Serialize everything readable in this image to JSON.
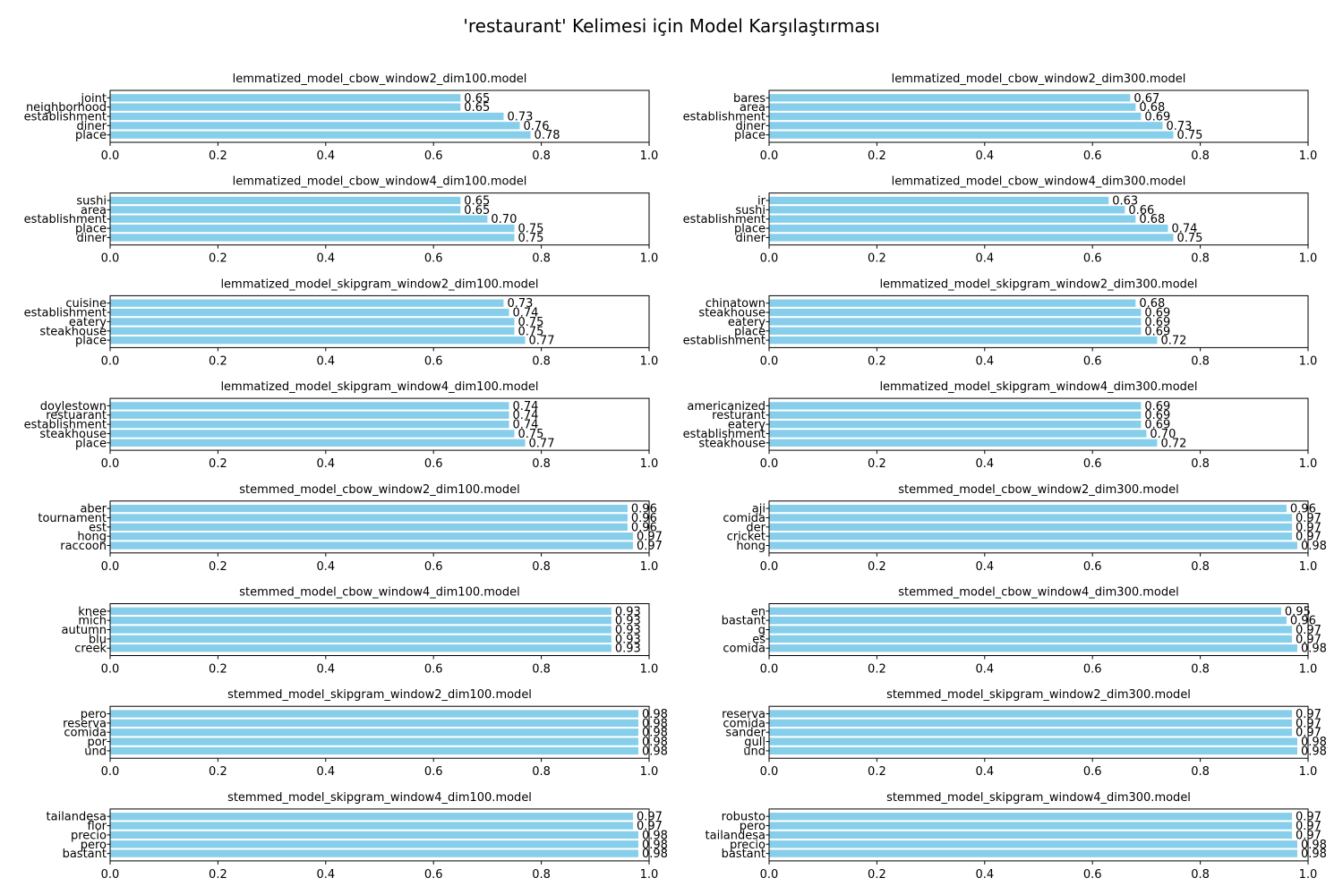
{
  "title": "'restaurant' Kelimesi için Model Karşılaştırması",
  "colors": {
    "bar": "#87ceeb",
    "axis": "#000000",
    "background": "#ffffff"
  },
  "chart_data": [
    {
      "type": "bar",
      "orientation": "horizontal",
      "title": "lemmatized_model_cbow_window2_dim100.model",
      "xlim": [
        0,
        1
      ],
      "xticks": [
        "0.0",
        "0.2",
        "0.4",
        "0.6",
        "0.8",
        "1.0"
      ],
      "grid": false,
      "categories": [
        "place",
        "diner",
        "establishment",
        "neighborhood",
        "joint"
      ],
      "values": [
        0.78,
        0.76,
        0.73,
        0.65,
        0.65
      ],
      "labels": [
        "0.78",
        "0.76",
        "0.73",
        "0.65",
        "0.65"
      ]
    },
    {
      "type": "bar",
      "orientation": "horizontal",
      "title": "lemmatized_model_cbow_window2_dim300.model",
      "xlim": [
        0,
        1
      ],
      "xticks": [
        "0.0",
        "0.2",
        "0.4",
        "0.6",
        "0.8",
        "1.0"
      ],
      "grid": false,
      "categories": [
        "place",
        "diner",
        "establishment",
        "area",
        "bares"
      ],
      "values": [
        0.75,
        0.73,
        0.69,
        0.68,
        0.67
      ],
      "labels": [
        "0.75",
        "0.73",
        "0.69",
        "0.68",
        "0.67"
      ]
    },
    {
      "type": "bar",
      "orientation": "horizontal",
      "title": "lemmatized_model_cbow_window4_dim100.model",
      "xlim": [
        0,
        1
      ],
      "xticks": [
        "0.0",
        "0.2",
        "0.4",
        "0.6",
        "0.8",
        "1.0"
      ],
      "grid": false,
      "categories": [
        "diner",
        "place",
        "establishment",
        "area",
        "sushi"
      ],
      "values": [
        0.75,
        0.75,
        0.7,
        0.65,
        0.65
      ],
      "labels": [
        "0.75",
        "0.75",
        "0.70",
        "0.65",
        "0.65"
      ]
    },
    {
      "type": "bar",
      "orientation": "horizontal",
      "title": "lemmatized_model_cbow_window4_dim300.model",
      "xlim": [
        0,
        1
      ],
      "xticks": [
        "0.0",
        "0.2",
        "0.4",
        "0.6",
        "0.8",
        "1.0"
      ],
      "grid": false,
      "categories": [
        "diner",
        "place",
        "establishment",
        "sushi",
        "ir"
      ],
      "values": [
        0.75,
        0.74,
        0.68,
        0.66,
        0.63
      ],
      "labels": [
        "0.75",
        "0.74",
        "0.68",
        "0.66",
        "0.63"
      ]
    },
    {
      "type": "bar",
      "orientation": "horizontal",
      "title": "lemmatized_model_skipgram_window2_dim100.model",
      "xlim": [
        0,
        1
      ],
      "xticks": [
        "0.0",
        "0.2",
        "0.4",
        "0.6",
        "0.8",
        "1.0"
      ],
      "grid": false,
      "categories": [
        "place",
        "steakhouse",
        "eatery",
        "establishment",
        "cuisine"
      ],
      "values": [
        0.77,
        0.75,
        0.75,
        0.74,
        0.73
      ],
      "labels": [
        "0.77",
        "0.75",
        "0.75",
        "0.74",
        "0.73"
      ]
    },
    {
      "type": "bar",
      "orientation": "horizontal",
      "title": "lemmatized_model_skipgram_window2_dim300.model",
      "xlim": [
        0,
        1
      ],
      "xticks": [
        "0.0",
        "0.2",
        "0.4",
        "0.6",
        "0.8",
        "1.0"
      ],
      "grid": false,
      "categories": [
        "establishment",
        "place",
        "eatery",
        "steakhouse",
        "chinatown"
      ],
      "values": [
        0.72,
        0.69,
        0.69,
        0.69,
        0.68
      ],
      "labels": [
        "0.72",
        "0.69",
        "0.69",
        "0.69",
        "0.68"
      ]
    },
    {
      "type": "bar",
      "orientation": "horizontal",
      "title": "lemmatized_model_skipgram_window4_dim100.model",
      "xlim": [
        0,
        1
      ],
      "xticks": [
        "0.0",
        "0.2",
        "0.4",
        "0.6",
        "0.8",
        "1.0"
      ],
      "grid": false,
      "categories": [
        "place",
        "steakhouse",
        "establishment",
        "restuarant",
        "doylestown"
      ],
      "values": [
        0.77,
        0.75,
        0.74,
        0.74,
        0.74
      ],
      "labels": [
        "0.77",
        "0.75",
        "0.74",
        "0.74",
        "0.74"
      ]
    },
    {
      "type": "bar",
      "orientation": "horizontal",
      "title": "lemmatized_model_skipgram_window4_dim300.model",
      "xlim": [
        0,
        1
      ],
      "xticks": [
        "0.0",
        "0.2",
        "0.4",
        "0.6",
        "0.8",
        "1.0"
      ],
      "grid": false,
      "categories": [
        "steakhouse",
        "establishment",
        "eatery",
        "resturant",
        "americanized"
      ],
      "values": [
        0.72,
        0.7,
        0.69,
        0.69,
        0.69
      ],
      "labels": [
        "0.72",
        "0.70",
        "0.69",
        "0.69",
        "0.69"
      ]
    },
    {
      "type": "bar",
      "orientation": "horizontal",
      "title": "stemmed_model_cbow_window2_dim100.model",
      "xlim": [
        0,
        1
      ],
      "xticks": [
        "0.0",
        "0.2",
        "0.4",
        "0.6",
        "0.8",
        "1.0"
      ],
      "grid": false,
      "categories": [
        "raccoon",
        "hong",
        "est",
        "tournament",
        "aber"
      ],
      "values": [
        0.97,
        0.97,
        0.96,
        0.96,
        0.96
      ],
      "labels": [
        "0.97",
        "0.97",
        "0.96",
        "0.96",
        "0.96"
      ]
    },
    {
      "type": "bar",
      "orientation": "horizontal",
      "title": "stemmed_model_cbow_window2_dim300.model",
      "xlim": [
        0,
        1
      ],
      "xticks": [
        "0.0",
        "0.2",
        "0.4",
        "0.6",
        "0.8",
        "1.0"
      ],
      "grid": false,
      "categories": [
        "hong",
        "cricket",
        "der",
        "comida",
        "aji"
      ],
      "values": [
        0.98,
        0.97,
        0.97,
        0.97,
        0.96
      ],
      "labels": [
        "0.98",
        "0.97",
        "0.97",
        "0.97",
        "0.96"
      ]
    },
    {
      "type": "bar",
      "orientation": "horizontal",
      "title": "stemmed_model_cbow_window4_dim100.model",
      "xlim": [
        0,
        1
      ],
      "xticks": [
        "0.0",
        "0.2",
        "0.4",
        "0.6",
        "0.8",
        "1.0"
      ],
      "grid": false,
      "categories": [
        "creek",
        "blu",
        "autumn",
        "mich",
        "knee"
      ],
      "values": [
        0.93,
        0.93,
        0.93,
        0.93,
        0.93
      ],
      "labels": [
        "0.93",
        "0.93",
        "0.93",
        "0.93",
        "0.93"
      ]
    },
    {
      "type": "bar",
      "orientation": "horizontal",
      "title": "stemmed_model_cbow_window4_dim300.model",
      "xlim": [
        0,
        1
      ],
      "xticks": [
        "0.0",
        "0.2",
        "0.4",
        "0.6",
        "0.8",
        "1.0"
      ],
      "grid": false,
      "categories": [
        "comida",
        "es",
        "g",
        "bastant",
        "en"
      ],
      "values": [
        0.98,
        0.97,
        0.97,
        0.96,
        0.95
      ],
      "labels": [
        "0.98",
        "0.97",
        "0.97",
        "0.96",
        "0.95"
      ]
    },
    {
      "type": "bar",
      "orientation": "horizontal",
      "title": "stemmed_model_skipgram_window2_dim100.model",
      "xlim": [
        0,
        1
      ],
      "xticks": [
        "0.0",
        "0.2",
        "0.4",
        "0.6",
        "0.8",
        "1.0"
      ],
      "grid": false,
      "categories": [
        "und",
        "por",
        "comida",
        "reserva",
        "pero"
      ],
      "values": [
        0.98,
        0.98,
        0.98,
        0.98,
        0.98
      ],
      "labels": [
        "0.98",
        "0.98",
        "0.98",
        "0.98",
        "0.98"
      ]
    },
    {
      "type": "bar",
      "orientation": "horizontal",
      "title": "stemmed_model_skipgram_window2_dim300.model",
      "xlim": [
        0,
        1
      ],
      "xticks": [
        "0.0",
        "0.2",
        "0.4",
        "0.6",
        "0.8",
        "1.0"
      ],
      "grid": false,
      "categories": [
        "und",
        "gull",
        "sander",
        "comida",
        "reserva"
      ],
      "values": [
        0.98,
        0.98,
        0.97,
        0.97,
        0.97
      ],
      "labels": [
        "0.98",
        "0.98",
        "0.97",
        "0.97",
        "0.97"
      ]
    },
    {
      "type": "bar",
      "orientation": "horizontal",
      "title": "stemmed_model_skipgram_window4_dim100.model",
      "xlim": [
        0,
        1
      ],
      "xticks": [
        "0.0",
        "0.2",
        "0.4",
        "0.6",
        "0.8",
        "1.0"
      ],
      "grid": false,
      "categories": [
        "bastant",
        "pero",
        "precio",
        "flor",
        "tailandesa"
      ],
      "values": [
        0.98,
        0.98,
        0.98,
        0.97,
        0.97
      ],
      "labels": [
        "0.98",
        "0.98",
        "0.98",
        "0.97",
        "0.97"
      ]
    },
    {
      "type": "bar",
      "orientation": "horizontal",
      "title": "stemmed_model_skipgram_window4_dim300.model",
      "xlim": [
        0,
        1
      ],
      "xticks": [
        "0.0",
        "0.2",
        "0.4",
        "0.6",
        "0.8",
        "1.0"
      ],
      "grid": false,
      "categories": [
        "bastant",
        "precio",
        "tailandesa",
        "pero",
        "robusto"
      ],
      "values": [
        0.98,
        0.98,
        0.97,
        0.97,
        0.97
      ],
      "labels": [
        "0.98",
        "0.98",
        "0.97",
        "0.97",
        "0.97"
      ]
    }
  ]
}
